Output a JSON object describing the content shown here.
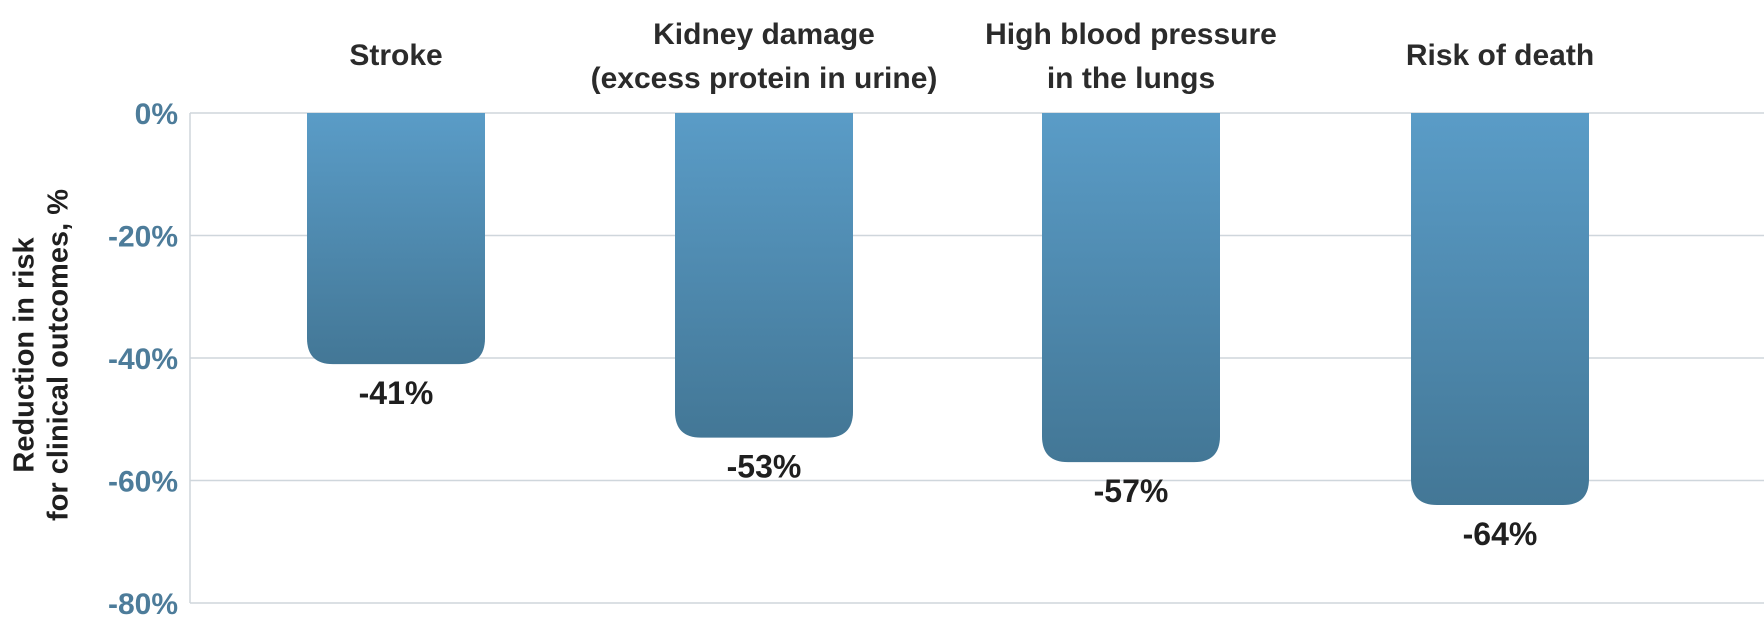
{
  "chart_data": {
    "type": "bar",
    "categories": [
      [
        "Stroke"
      ],
      [
        "Kidney damage",
        "(excess protein in urine)"
      ],
      [
        "High blood pressure",
        "in the lungs"
      ],
      [
        "Risk of death"
      ]
    ],
    "values": [
      -41,
      -53,
      -57,
      -64
    ],
    "value_labels": [
      "-41%",
      "-53%",
      "-57%",
      "-64%"
    ],
    "ylabel": [
      "Reduction in risk",
      "for clinical outcomes, %"
    ],
    "ylim": [
      -80,
      0
    ],
    "yticks": [
      0,
      -20,
      -40,
      -60,
      -80
    ],
    "ytick_labels": [
      "0%",
      "-20%",
      "-40%",
      "-60%",
      "-80%"
    ],
    "grid": true,
    "bar_color_top": "#5a9cc7",
    "bar_color_bottom": "#437796",
    "tick_color": "#4d7c9a"
  }
}
